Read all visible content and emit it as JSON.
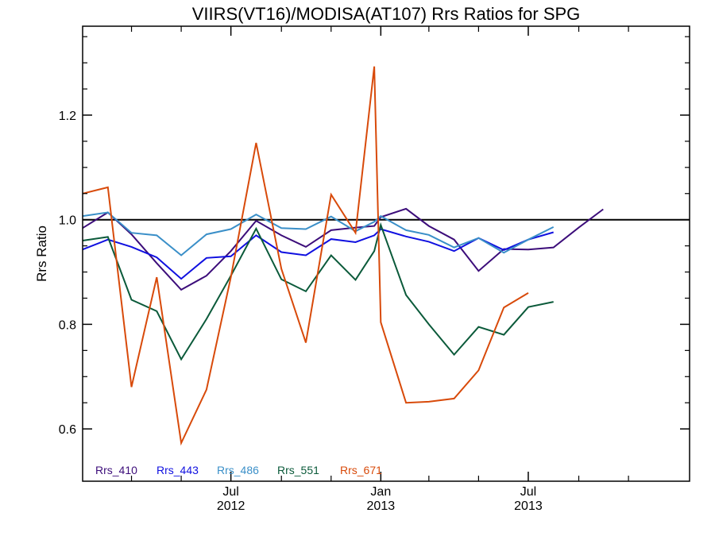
{
  "chart_data": {
    "type": "line",
    "title": "VIIRS(VT16)/MODISA(AT107)  Rrs Ratios for SPG",
    "xlabel": "",
    "ylabel": "Rrs Ratio",
    "xlim": [
      "2012-01-01",
      "2014-01-15"
    ],
    "ylim": [
      0.5,
      1.37
    ],
    "grid": false,
    "legend_position": "bottom-left",
    "reference_line": 1.0,
    "y_ticks": [
      0.6,
      0.8,
      1.0,
      1.2
    ],
    "y_tick_labels": [
      "0.6",
      "0.8",
      "1.0",
      "1.2"
    ],
    "x_tick_labels": [
      {
        "date": "2012-07-01",
        "line1": "Jul",
        "line2": "2012"
      },
      {
        "date": "2013-01-01",
        "line1": "Jan",
        "line2": "2013"
      },
      {
        "date": "2013-07-01",
        "line1": "Jul",
        "line2": "2013"
      }
    ],
    "x_minor_ticks": [
      "2012-03-01",
      "2012-05-01",
      "2012-09-01",
      "2012-11-01",
      "2013-03-01",
      "2013-05-01",
      "2013-09-01",
      "2013-11-01"
    ],
    "x": [
      "2012-01-01",
      "2012-02-01",
      "2012-03-01",
      "2012-04-01",
      "2012-05-01",
      "2012-06-01",
      "2012-07-01",
      "2012-08-01",
      "2012-09-01",
      "2012-10-01",
      "2012-11-01",
      "2012-12-01",
      "2012-12-24",
      "2013-01-01",
      "2013-02-01",
      "2013-03-01",
      "2013-04-01",
      "2013-05-01",
      "2013-06-01",
      "2013-07-01",
      "2013-08-01",
      "2013-09-01",
      "2013-10-01",
      "2013-11-01",
      "2013-12-01",
      "2014-01-01",
      "2014-01-15"
    ],
    "series": [
      {
        "name": "Rrs_410",
        "color": "#3c0d7a",
        "values": [
          0.984,
          1.014,
          0.972,
          0.917,
          0.866,
          0.893,
          0.94,
          0.998,
          0.97,
          0.948,
          0.98,
          0.985,
          0.988,
          1.005,
          1.021,
          0.988,
          0.962,
          0.902,
          0.944,
          0.943,
          0.947,
          0.985,
          1.02,
          null,
          null,
          null,
          null
        ]
      },
      {
        "name": "Rrs_443",
        "color": "#1010e0",
        "values": [
          0.943,
          0.962,
          0.948,
          0.928,
          0.887,
          0.927,
          0.93,
          0.97,
          0.938,
          0.932,
          0.963,
          0.957,
          0.97,
          0.982,
          0.968,
          0.958,
          0.94,
          0.965,
          0.942,
          0.962,
          0.976,
          null,
          null,
          null,
          null,
          null,
          null
        ]
      },
      {
        "name": "Rrs_486",
        "color": "#3a8fc8",
        "values": [
          1.007,
          1.014,
          0.975,
          0.97,
          0.932,
          0.972,
          0.982,
          1.01,
          0.984,
          0.982,
          1.006,
          0.978,
          0.996,
          1.007,
          0.98,
          0.971,
          0.947,
          0.965,
          0.937,
          0.962,
          0.986,
          null,
          null,
          null,
          null,
          null,
          null
        ]
      },
      {
        "name": "Rrs_551",
        "color": "#0b5a3a",
        "values": [
          0.96,
          0.967,
          0.847,
          0.825,
          0.733,
          0.81,
          0.893,
          0.983,
          0.886,
          0.863,
          0.932,
          0.885,
          0.94,
          0.99,
          0.856,
          0.8,
          0.742,
          0.795,
          0.78,
          0.833,
          0.843,
          null,
          null,
          null,
          null,
          null,
          null
        ]
      },
      {
        "name": "Rrs_671",
        "color": "#d84a0a",
        "values": [
          1.05,
          1.062,
          0.68,
          0.89,
          0.573,
          0.675,
          0.89,
          1.147,
          0.906,
          0.765,
          1.048,
          0.975,
          1.293,
          0.804,
          0.65,
          0.652,
          0.658,
          0.712,
          0.832,
          0.86,
          null,
          null,
          null,
          null,
          null,
          null,
          null
        ]
      }
    ]
  }
}
